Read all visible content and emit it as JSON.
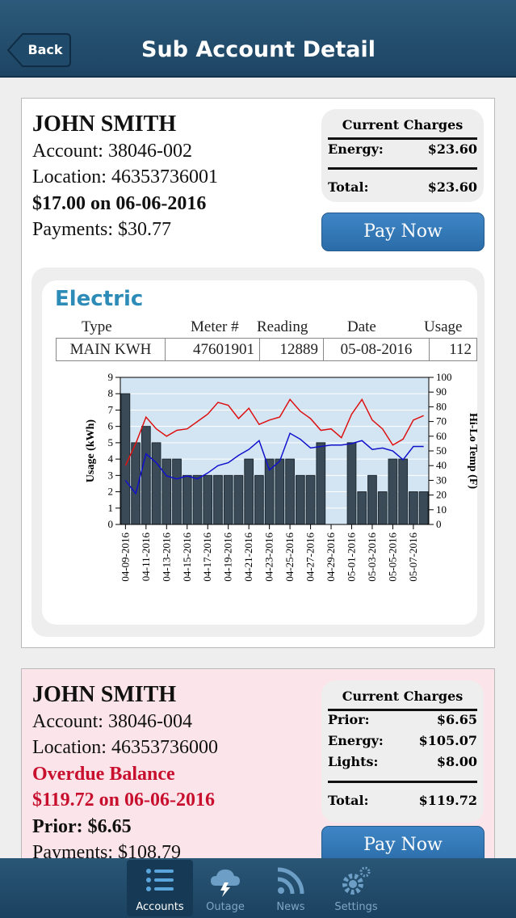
{
  "nav": {
    "back_label": "Back",
    "title": "Sub Account Detail"
  },
  "accounts": [
    {
      "name": "JOHN SMITH",
      "account": "Account: 38046-002",
      "location": "Location: 46353736001",
      "due": "$17.00 on 06-06-2016",
      "payments": "Payments: $30.77",
      "charges": {
        "title": "Current Charges",
        "rows": [
          {
            "label": "Energy:",
            "value": "$23.60"
          }
        ],
        "total_label": "Total:",
        "total_value": "$23.60"
      },
      "pay_label": "Pay Now",
      "electric": {
        "title": "Electric",
        "headers": {
          "type": "Type",
          "meter": "Meter #",
          "reading": "Reading",
          "date": "Date",
          "usage": "Usage"
        },
        "row": {
          "type": "MAIN KWH",
          "meter": "47601901",
          "reading": "12889",
          "date": "05-08-2016",
          "usage": "112"
        }
      }
    },
    {
      "name": "JOHN SMITH",
      "account": "Account: 38046-004",
      "location": "Location: 46353736000",
      "overdue_label": "Overdue Balance",
      "overdue_due": "$119.72 on 06-06-2016",
      "prior": "Prior: $6.65",
      "payments": "Payments: $108.79",
      "charges": {
        "title": "Current Charges",
        "rows": [
          {
            "label": "Prior:",
            "value": "$6.65"
          },
          {
            "label": "Energy:",
            "value": "$105.07"
          },
          {
            "label": "Lights:",
            "value": "$8.00"
          }
        ],
        "total_label": "Total:",
        "total_value": "$119.72"
      },
      "pay_label": "Pay Now"
    }
  ],
  "chart_data": {
    "type": "bar",
    "categories": [
      "04-09-2016",
      "04-10-2016",
      "04-11-2016",
      "04-12-2016",
      "04-13-2016",
      "04-14-2016",
      "04-15-2016",
      "04-16-2016",
      "04-17-2016",
      "04-18-2016",
      "04-19-2016",
      "04-20-2016",
      "04-21-2016",
      "04-22-2016",
      "04-23-2016",
      "04-24-2016",
      "04-25-2016",
      "04-26-2016",
      "04-27-2016",
      "04-28-2016",
      "04-29-2016",
      "04-30-2016",
      "05-01-2016",
      "05-02-2016",
      "05-03-2016",
      "05-04-2016",
      "05-05-2016",
      "05-06-2016",
      "05-07-2016",
      "05-08-2016"
    ],
    "x_tick_labels": [
      "04-09-2016",
      "04-11-2016",
      "04-13-2016",
      "04-15-2016",
      "04-17-2016",
      "04-19-2016",
      "04-21-2016",
      "04-23-2016",
      "04-25-2016",
      "04-27-2016",
      "04-29-2016",
      "05-01-2016",
      "05-03-2016",
      "05-05-2016",
      "05-07-2016"
    ],
    "series": [
      {
        "name": "Usage",
        "type": "bar",
        "axis": "left",
        "values": [
          8,
          5,
          6,
          5,
          4,
          4,
          3,
          3,
          3,
          3,
          3,
          3,
          4,
          3,
          4,
          4,
          4,
          3,
          3,
          5,
          0,
          0,
          5,
          2,
          3,
          2,
          4,
          4,
          2,
          2
        ]
      },
      {
        "name": "Hi",
        "type": "line",
        "axis": "right",
        "color": "#dd1111",
        "values": [
          40,
          55,
          73,
          65,
          60,
          64,
          65,
          70,
          75,
          83,
          81,
          72,
          79,
          68,
          71,
          73,
          85,
          77,
          72,
          64,
          65,
          59,
          75,
          85,
          71,
          65,
          54,
          58,
          71,
          74
        ]
      },
      {
        "name": "Lo",
        "type": "line",
        "axis": "right",
        "color": "#1111cc",
        "values": [
          30,
          21,
          48,
          42,
          33,
          31,
          33,
          31,
          35,
          40,
          42,
          47,
          51,
          57,
          37,
          43,
          62,
          58,
          52,
          53,
          54,
          54,
          55,
          57,
          51,
          52,
          50,
          44,
          53,
          53
        ]
      }
    ],
    "ylabel": "Usage (kWh)",
    "y2label": "Hi-Lo Temp (F)",
    "ylim": [
      0,
      9
    ],
    "y2lim": [
      0,
      100
    ],
    "y_ticks": [
      0,
      1,
      2,
      3,
      4,
      5,
      6,
      7,
      8,
      9
    ],
    "y2_ticks": [
      0,
      10,
      20,
      30,
      40,
      50,
      60,
      70,
      80,
      90,
      100
    ],
    "grid": true,
    "colors": {
      "bar": "#3a4a56",
      "plot_bg": "#d3e5f3"
    }
  },
  "tabs": [
    {
      "label": "Accounts",
      "icon": "list-icon",
      "active": true
    },
    {
      "label": "Outage",
      "icon": "storm-cloud-icon",
      "active": false
    },
    {
      "label": "News",
      "icon": "rss-icon",
      "active": false
    },
    {
      "label": "Settings",
      "icon": "gears-icon",
      "active": false
    }
  ]
}
